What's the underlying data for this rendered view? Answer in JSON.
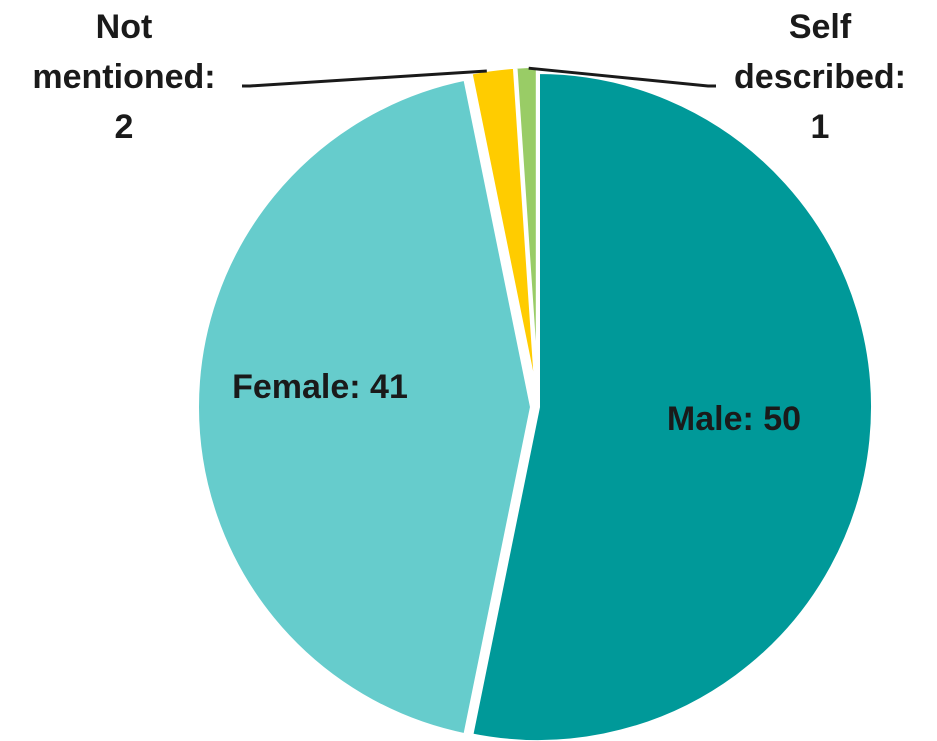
{
  "chart_data": {
    "type": "pie",
    "slices": [
      {
        "label": "Male: 50",
        "value": 50,
        "color": "#009999"
      },
      {
        "label": "Female: 41",
        "value": 41,
        "color": "#66CCCC"
      },
      {
        "label": "Not mentioned: 2",
        "value": 2,
        "color": "#FFCC00"
      },
      {
        "label": "Self described: 1",
        "value": 1,
        "color": "#99CC66"
      }
    ],
    "label_lines": {
      "male": [
        "Male: 50"
      ],
      "female": [
        "Female: 41"
      ],
      "not_mentioned": [
        "Not",
        "mentioned:",
        "2"
      ],
      "self_described": [
        "Self",
        "described:",
        "1"
      ]
    }
  }
}
